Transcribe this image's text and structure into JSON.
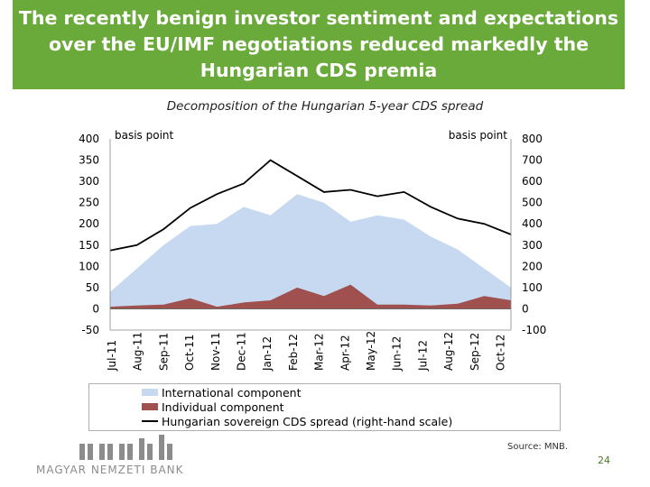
{
  "slide": {
    "title": "The recently benign investor sentiment and expectations over the EU/IMF negotiations reduced markedly the Hungarian CDS premia",
    "subtitle": "Decomposition of the Hungarian 5-year CDS spread",
    "source": "Source: MNB.",
    "page_number": "24",
    "logo_text": "MAGYAR NEMZETI BANK",
    "title_bg_color": "#6aaa3a"
  },
  "chart_data": {
    "type": "area",
    "left_axis": {
      "label": "basis point",
      "ylim": [
        -50,
        400
      ],
      "ticks": [
        "400",
        "350",
        "300",
        "250",
        "200",
        "150",
        "100",
        "50",
        "0",
        "-50"
      ]
    },
    "right_axis": {
      "label": "basis point",
      "ylim": [
        -100,
        800
      ],
      "ticks": [
        "800",
        "700",
        "600",
        "500",
        "400",
        "300",
        "200",
        "100",
        "0",
        "-100"
      ]
    },
    "x_tick_labels": [
      "Jul-11",
      "Aug-11",
      "Sep-11",
      "Oct-11",
      "Nov-11",
      "Dec-11",
      "Jan-12",
      "Feb-12",
      "Mar-12",
      "Apr-12",
      "May-12",
      "Jun-12",
      "Jul-12",
      "Aug-12",
      "Sep-12",
      "Oct-12"
    ],
    "x": [
      "Jul-11",
      "Aug-11",
      "Sep-11",
      "Oct-11",
      "Nov-11",
      "Dec-11",
      "Jan-12",
      "Feb-12",
      "Mar-12",
      "Apr-12",
      "May-12",
      "Jun-12",
      "Jul-12",
      "Aug-12",
      "Sep-12",
      "Oct-12"
    ],
    "grid": false,
    "legend_position": "bottom",
    "series": [
      {
        "name": "International component",
        "kind": "stacked-area",
        "axis": "left",
        "color": "#c6d9f0",
        "values": [
          40,
          95,
          150,
          195,
          200,
          240,
          220,
          270,
          250,
          205,
          220,
          210,
          170,
          140,
          95,
          50
        ]
      },
      {
        "name": "Individual component",
        "kind": "stacked-area",
        "axis": "left",
        "color": "#a0514f",
        "values": [
          5,
          8,
          10,
          25,
          5,
          15,
          20,
          50,
          30,
          57,
          10,
          10,
          8,
          12,
          30,
          20
        ]
      },
      {
        "name": "Hungarian sovereign CDS spread (right-hand scale)",
        "kind": "line",
        "axis": "right",
        "color": "#000000",
        "values": [
          275,
          300,
          375,
          475,
          540,
          590,
          700,
          625,
          550,
          560,
          530,
          550,
          480,
          425,
          400,
          350
        ]
      }
    ]
  }
}
